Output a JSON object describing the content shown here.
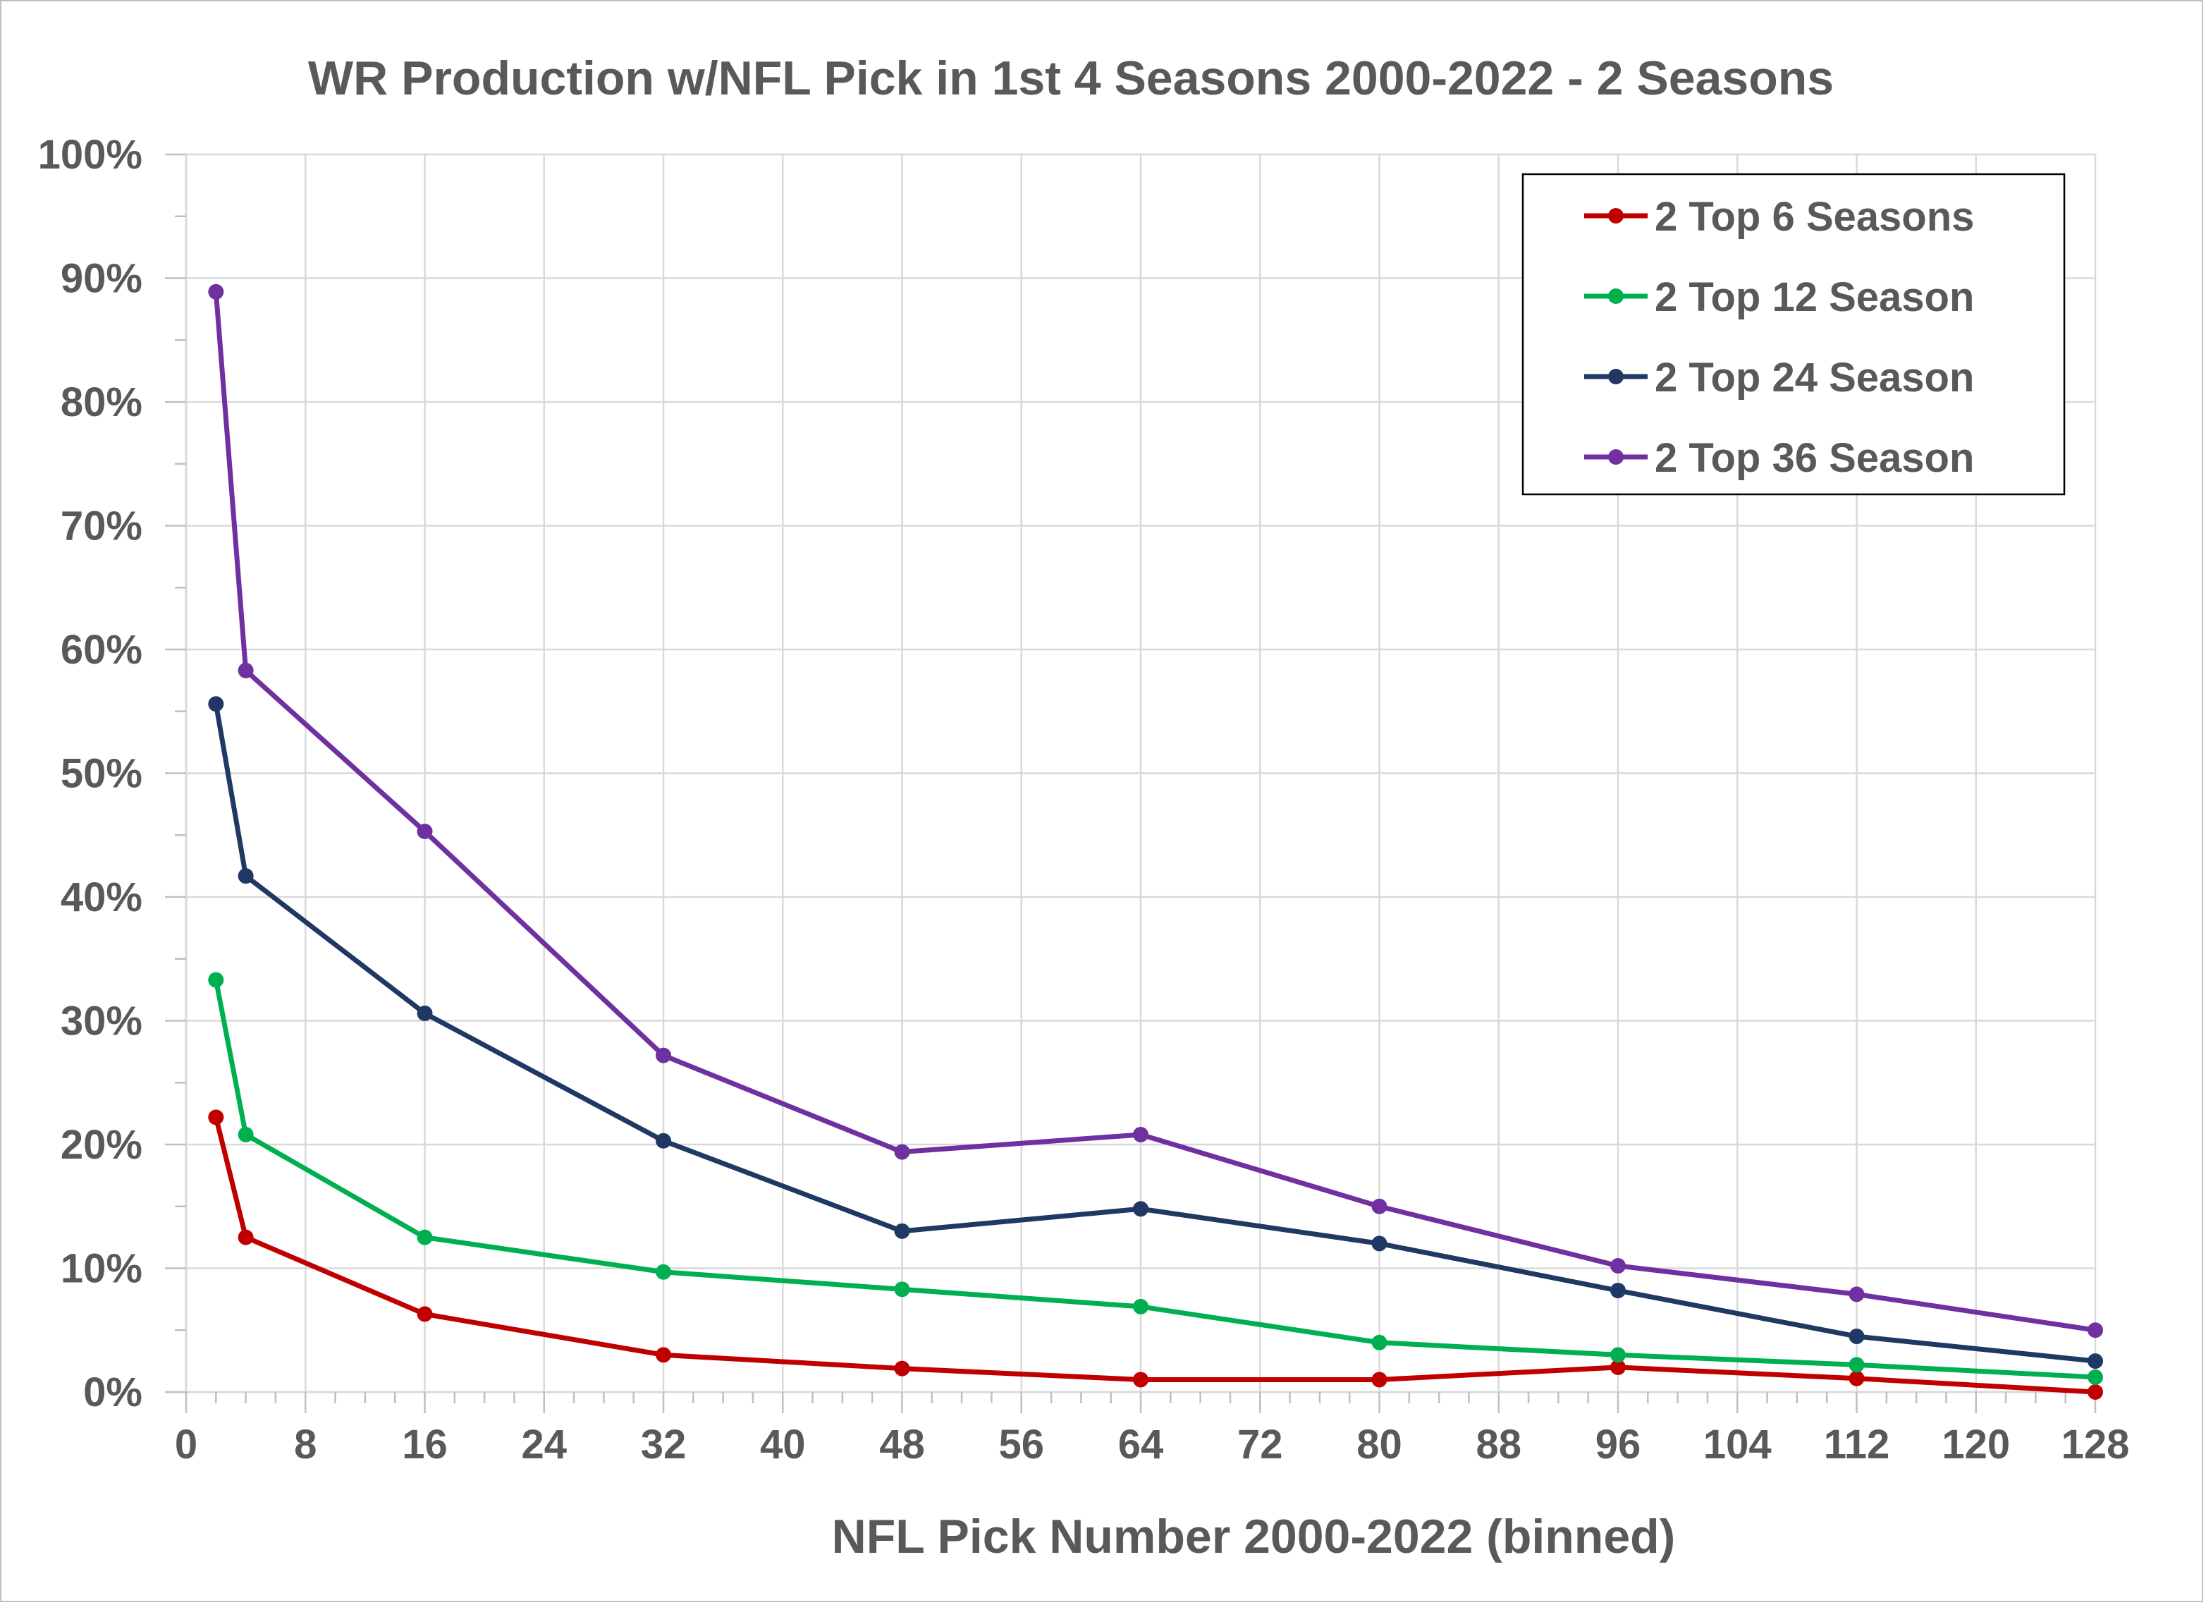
{
  "chart_data": {
    "type": "line",
    "title": "WR Production w/NFL Pick in 1st 4 Seasons 2000-2022 - 2 Seasons",
    "xlabel": "NFL Pick Number 2000-2022 (binned)",
    "ylabel": "",
    "xlim": [
      0,
      128
    ],
    "ylim": [
      0,
      1
    ],
    "x_ticks": [
      "0",
      "8",
      "16",
      "24",
      "32",
      "40",
      "48",
      "56",
      "64",
      "72",
      "80",
      "88",
      "96",
      "104",
      "112",
      "120",
      "128"
    ],
    "x_tick_values": [
      0,
      8,
      16,
      24,
      32,
      40,
      48,
      56,
      64,
      72,
      80,
      88,
      96,
      104,
      112,
      120,
      128
    ],
    "y_ticks": [
      "0%",
      "10%",
      "20%",
      "30%",
      "40%",
      "50%",
      "60%",
      "70%",
      "80%",
      "90%",
      "100%"
    ],
    "y_tick_values": [
      0,
      0.1,
      0.2,
      0.3,
      0.4,
      0.5,
      0.6,
      0.7,
      0.8,
      0.9,
      1.0
    ],
    "grid": true,
    "legend_position": "top-right",
    "x": [
      2,
      4,
      16,
      32,
      48,
      64,
      80,
      96,
      112,
      128
    ],
    "series": [
      {
        "name": "2 Top 6 Seasons",
        "color": "#c00000",
        "values": [
          0.222,
          0.125,
          0.063,
          0.03,
          0.019,
          0.01,
          0.01,
          0.02,
          0.011,
          0.0
        ]
      },
      {
        "name": "2 Top 12 Season",
        "color": "#00b050",
        "values": [
          0.333,
          0.208,
          0.125,
          0.097,
          0.083,
          0.069,
          0.04,
          0.03,
          0.022,
          0.012
        ]
      },
      {
        "name": "2 Top 24 Season",
        "color": "#203864",
        "values": [
          0.556,
          0.417,
          0.306,
          0.203,
          0.13,
          0.148,
          0.12,
          0.082,
          0.045,
          0.025
        ]
      },
      {
        "name": "2 Top 36 Season",
        "color": "#7030a0",
        "values": [
          0.889,
          0.583,
          0.453,
          0.272,
          0.194,
          0.208,
          0.15,
          0.102,
          0.079,
          0.05
        ]
      }
    ]
  }
}
